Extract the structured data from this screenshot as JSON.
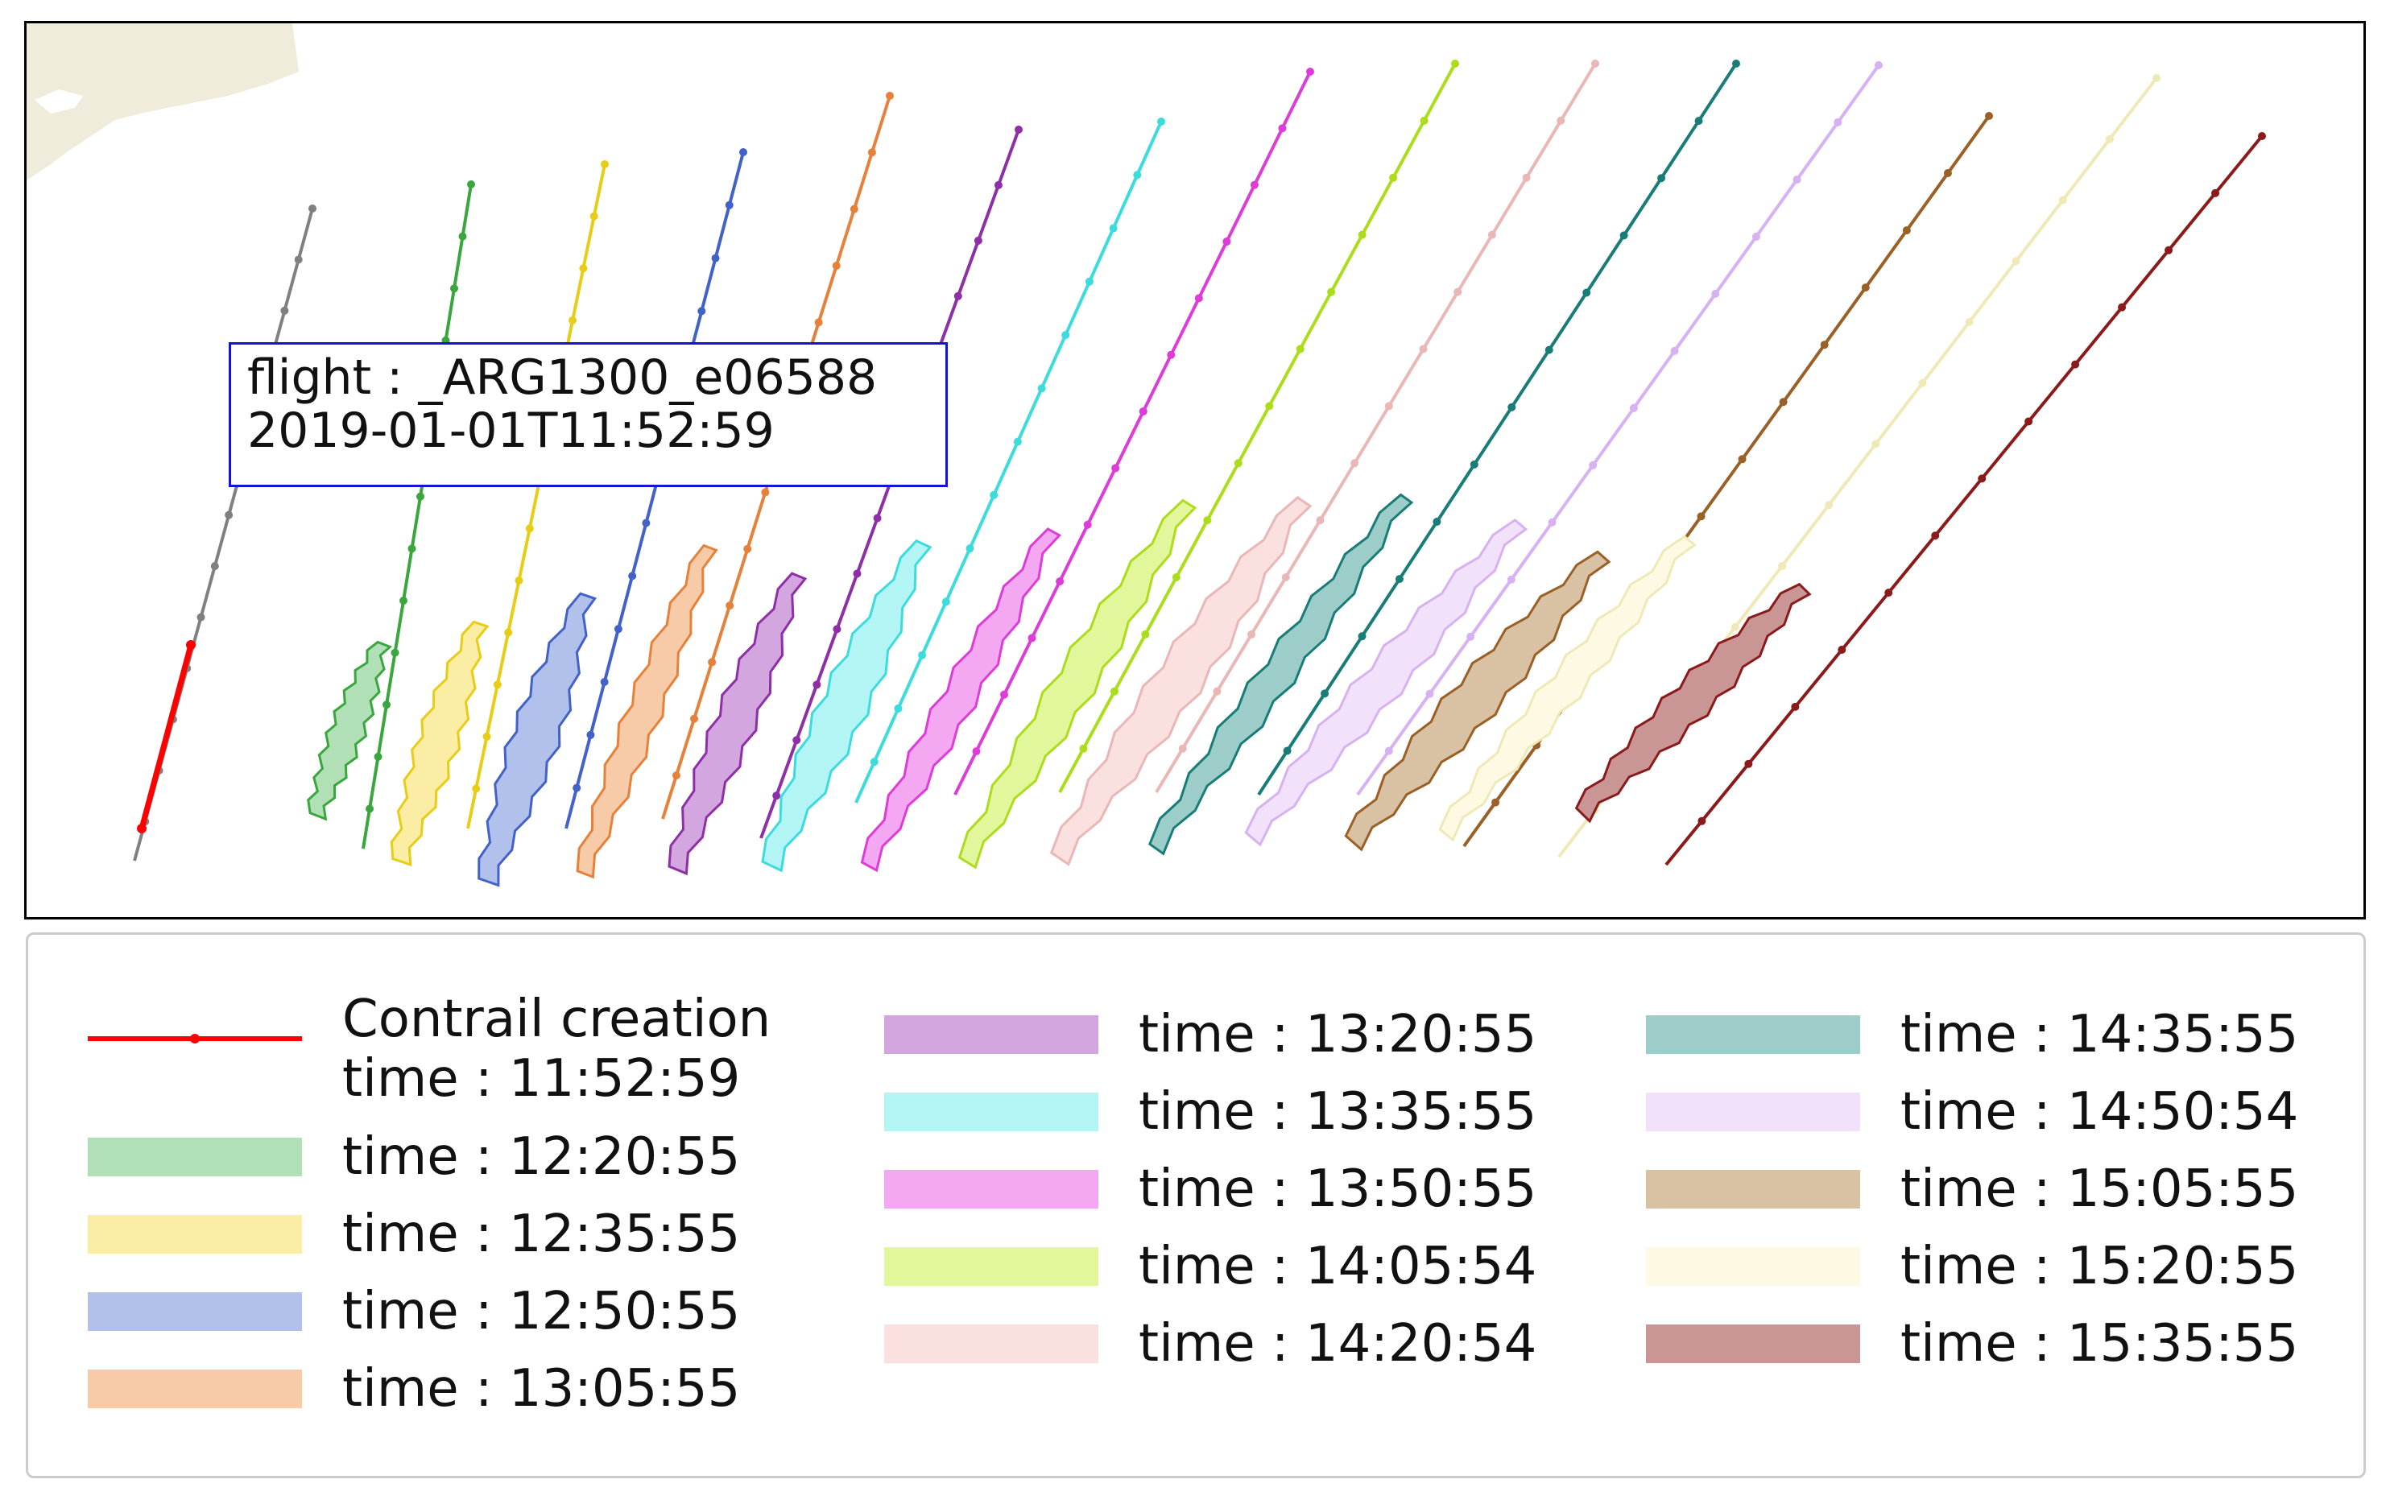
{
  "annotation": {
    "flight_line": "flight : _ARG1300_e06588",
    "time_line": "2019-01-01T11:52:59"
  },
  "legend": {
    "creation": {
      "label_line1": "Contrail creation",
      "label_line2": "time : 11:52:59",
      "color": "#ff0000"
    },
    "items": [
      {
        "label": "time : 12:20:55",
        "fill": "#b1e0b6",
        "edge": "#3aa63e"
      },
      {
        "label": "time : 12:35:55",
        "fill": "#fbeda4",
        "edge": "#e8cd17"
      },
      {
        "label": "time : 12:50:55",
        "fill": "#b2c0ec",
        "edge": "#4261c9"
      },
      {
        "label": "time : 13:05:55",
        "fill": "#f8cba8",
        "edge": "#e6813a"
      },
      {
        "label": "time : 13:20:55",
        "fill": "#d3a6e0",
        "edge": "#8e2fa8"
      },
      {
        "label": "time : 13:35:55",
        "fill": "#b3f5f5",
        "edge": "#3ddcdc"
      },
      {
        "label": "time : 13:50:55",
        "fill": "#f4a8f1",
        "edge": "#de3cd8"
      },
      {
        "label": "time : 14:05:54",
        "fill": "#e2f79b",
        "edge": "#acdd1a"
      },
      {
        "label": "time : 14:20:54",
        "fill": "#fbe0e0",
        "edge": "#eab7b7"
      },
      {
        "label": "time : 14:35:55",
        "fill": "#9dcdc9",
        "edge": "#187d78"
      },
      {
        "label": "time : 14:50:54",
        "fill": "#f2e1fb",
        "edge": "#d6b2f2"
      },
      {
        "label": "time : 15:05:55",
        "fill": "#d9c1a3",
        "edge": "#9a6026"
      },
      {
        "label": "time : 15:20:55",
        "fill": "#fdf9e3",
        "edge": "#efe9b8"
      },
      {
        "label": "time : 15:35:55",
        "fill": "#ca9595",
        "edge": "#8b1a1a"
      }
    ]
  },
  "colors": {
    "flight_track": "#808080",
    "contrail_creation": "#ff0000",
    "land": "#efecdb",
    "annotation_border": "#1414d2"
  }
}
